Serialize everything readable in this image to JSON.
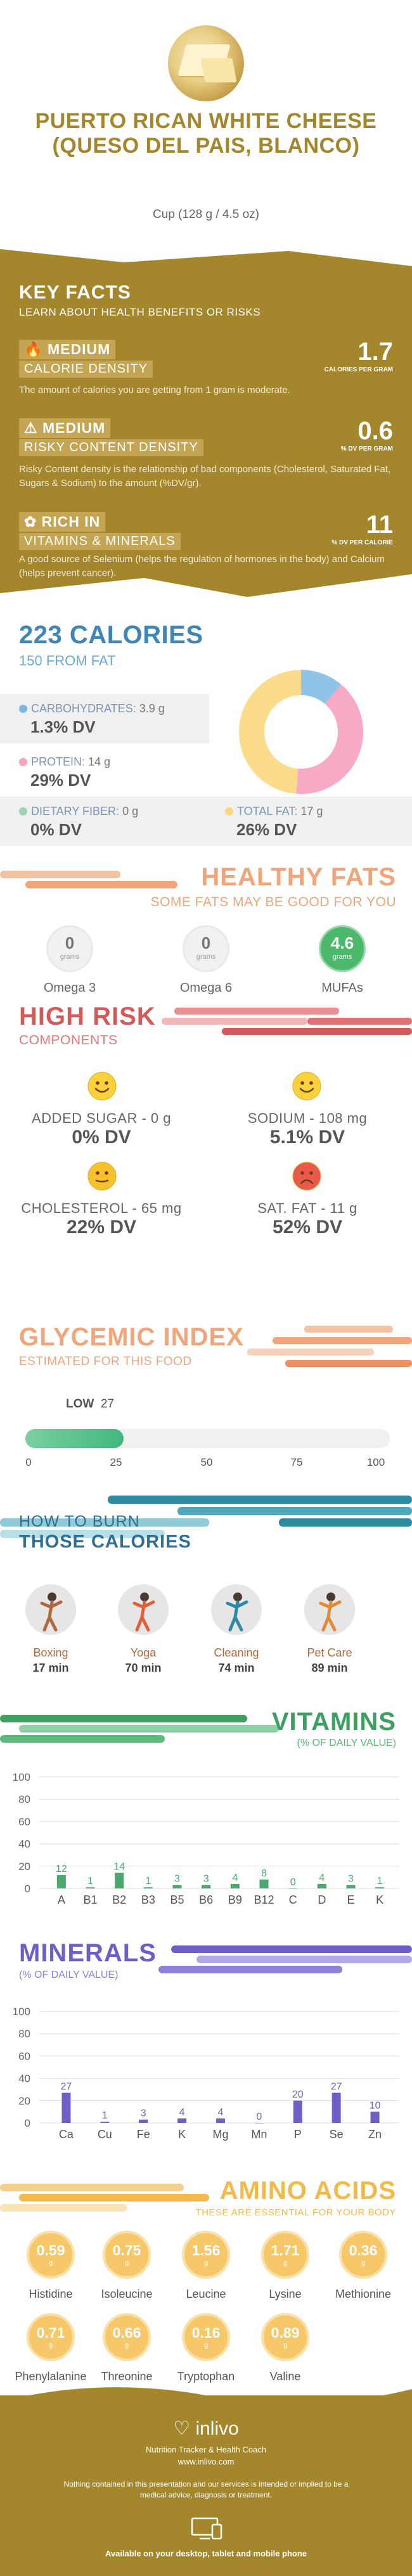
{
  "header": {
    "title": "PUERTO RICAN WHITE CHEESE (QUESO DEL PAIS, BLANCO)",
    "serving": "Cup (128 g / 4.5 oz)"
  },
  "key_facts": {
    "title": "KEY FACTS",
    "subtitle": "LEARN ABOUT HEALTH BENEFITS OR RISKS",
    "items": [
      {
        "level": "MEDIUM",
        "label": "CALORIE DENSITY",
        "value": "1.7",
        "unit": "CALORIES PER GRAM",
        "desc": "The amount of calories you are getting from 1 gram is moderate."
      },
      {
        "level": "MEDIUM",
        "label": "RISKY CONTENT DENSITY",
        "value": "0.6",
        "unit": "% DV PER GRAM",
        "desc": "Risky Content density is the relationship of bad components (Cholesterol, Saturated Fat, Sugars & Sodium) to the amount (%DV/gr)."
      },
      {
        "level": "RICH  IN",
        "label": "VITAMINS & MINERALS",
        "value": "11",
        "unit": "% DV PER CALORIE",
        "desc": "A good source of Selenium (helps the regulation of hormones in the body) and Calcium (helps prevent cancer)."
      }
    ]
  },
  "calories": {
    "title": "223 CALORIES",
    "from_fat": "150 FROM FAT",
    "carbs": {
      "label": "CARBOHYDRATES:",
      "amount": "3.9 g",
      "dv": "1.3% DV",
      "color": "#7fb6dd"
    },
    "protein": {
      "label": "PROTEIN:",
      "amount": "14 g",
      "dv": "29% DV",
      "color": "#f5a3c0"
    },
    "fiber": {
      "label": "DIETARY FIBER:",
      "amount": "0 g",
      "dv": "0% DV",
      "color": "#9fd3b0"
    },
    "fat": {
      "label": "TOTAL FAT:",
      "amount": "17 g",
      "dv": "26% DV",
      "color": "#fbd77b"
    }
  },
  "donut": {
    "slices": [
      {
        "name": "carbohydrates",
        "value": 3.9,
        "color": "#8fc3e8"
      },
      {
        "name": "protein",
        "value": 14,
        "color": "#f7a9c6"
      },
      {
        "name": "fat",
        "value": 17,
        "color": "#fbdc8a"
      }
    ]
  },
  "healthy_fats": {
    "title": "HEALTHY FATS",
    "subtitle": "SOME FATS MAY BE GOOD FOR YOU",
    "unit": "grams",
    "items": [
      {
        "name": "Omega 3",
        "value": "0",
        "highlight": false
      },
      {
        "name": "Omega 6",
        "value": "0",
        "highlight": false
      },
      {
        "name": "MUFAs",
        "value": "4.6",
        "highlight": true
      }
    ]
  },
  "high_risk": {
    "title": "HIGH RISK",
    "subtitle": "COMPONENTS",
    "items": [
      {
        "label": "ADDED SUGAR - 0 g",
        "dv": "0% DV",
        "mood": "happy"
      },
      {
        "label": "SODIUM - 108 mg",
        "dv": "5.1% DV",
        "mood": "happy"
      },
      {
        "label": "CHOLESTEROL - 65 mg",
        "dv": "22% DV",
        "mood": "neutral"
      },
      {
        "label": "SAT. FAT - 11 g",
        "dv": "52% DV",
        "mood": "sad"
      }
    ]
  },
  "glycemic": {
    "title": "GLYCEMIC INDEX",
    "subtitle": "ESTIMATED FOR THIS FOOD",
    "level": "LOW",
    "value": 27,
    "value_text": "27",
    "ticks": [
      "0",
      "25",
      "50",
      "75",
      "100"
    ]
  },
  "burn": {
    "title_1": "HOW TO BURN",
    "title_2": "THOSE CALORIES",
    "items": [
      {
        "name": "Boxing",
        "time": "17 min",
        "icon": "boxing-icon"
      },
      {
        "name": "Yoga",
        "time": "70 min",
        "icon": "yoga-icon"
      },
      {
        "name": "Cleaning",
        "time": "74 min",
        "icon": "cleaning-icon"
      },
      {
        "name": "Pet Care",
        "time": "89 min",
        "icon": "pet-care-icon"
      }
    ]
  },
  "vitamins": {
    "title": "VITAMINS",
    "subtitle": "(% OF DAILY VALUE)",
    "yticks": [
      "100",
      "80",
      "60",
      "40",
      "20",
      "0"
    ],
    "chart_data": {
      "type": "bar",
      "categories": [
        "A",
        "B1",
        "B2",
        "B3",
        "B5",
        "B6",
        "B9",
        "B12",
        "C",
        "D",
        "E",
        "K"
      ],
      "values": [
        12,
        1,
        14,
        1,
        3,
        3,
        4,
        8,
        0,
        4,
        3,
        1
      ],
      "labels": [
        "12",
        "1",
        "14",
        "1",
        "3",
        "3",
        "4",
        "8",
        "0",
        "4",
        "3",
        "1"
      ],
      "ylim": [
        0,
        100
      ],
      "color": "#4aa86e"
    }
  },
  "minerals": {
    "title": "MINERALS",
    "subtitle": "(% OF DAILY VALUE)",
    "yticks": [
      "100",
      "80",
      "60",
      "40",
      "20",
      "0"
    ],
    "chart_data": {
      "type": "bar",
      "categories": [
        "Ca",
        "Cu",
        "Fe",
        "K",
        "Mg",
        "Mn",
        "P",
        "Se",
        "Zn"
      ],
      "values": [
        27,
        1,
        3,
        4,
        4,
        0,
        20,
        27,
        10
      ],
      "labels": [
        "27",
        "1",
        "3",
        "4",
        "4",
        "0",
        "20",
        "27",
        "10"
      ],
      "ylim": [
        0,
        100
      ],
      "color": "#6f5ec7"
    }
  },
  "amino": {
    "title": "AMINO ACIDS",
    "subtitle": "THESE ARE ESSENTIAL FOR YOUR BODY",
    "unit": "g",
    "row1": [
      {
        "name": "Histidine",
        "value": "0.59"
      },
      {
        "name": "Isoleucine",
        "value": "0.75"
      },
      {
        "name": "Leucine",
        "value": "1.56"
      },
      {
        "name": "Lysine",
        "value": "1.71"
      },
      {
        "name": "Methionine",
        "value": "0.36"
      }
    ],
    "row2": [
      {
        "name": "Phenylalanine",
        "value": "0.71"
      },
      {
        "name": "Threonine",
        "value": "0.66"
      },
      {
        "name": "Tryptophan",
        "value": "0.16"
      },
      {
        "name": "Valine",
        "value": "0.89"
      }
    ]
  },
  "footer": {
    "brand": "inlivo",
    "tagline": "Nutrition Tracker & Health Coach",
    "url": "www.inlivo.com",
    "disclaimer": "Nothing contained in this presentation and our services is intended or implied to be a medical advice, diagnosis or treatment.",
    "platforms": "Available on your desktop, tablet and mobile phone"
  }
}
